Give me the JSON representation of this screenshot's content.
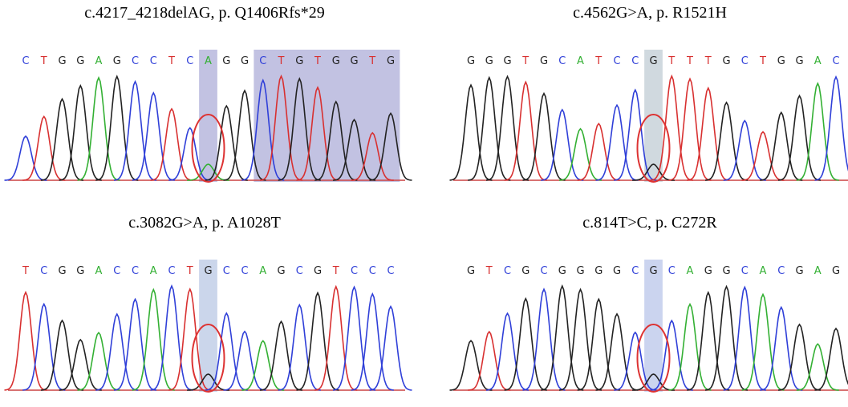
{
  "panels": [
    {
      "title": "c.4217_4218delAG, p. Q1406Rfs*29",
      "bases": [
        "C",
        "T",
        "G",
        "G",
        "A",
        "G",
        "C",
        "C",
        "T",
        "C",
        "A",
        "G",
        "G",
        "C",
        "T",
        "G",
        "T",
        "G",
        "G",
        "T",
        "G"
      ]
    },
    {
      "title": "c.4562G>A, p. R1521H",
      "bases": [
        "G",
        "G",
        "G",
        "T",
        "G",
        "C",
        "A",
        "T",
        "C",
        "C",
        "G",
        "T",
        "T",
        "T",
        "G",
        "C",
        "T",
        "G",
        "G",
        "A",
        "C"
      ]
    },
    {
      "title": "c.3082G>A, p. A1028T",
      "bases": [
        "T",
        "C",
        "G",
        "G",
        "A",
        "C",
        "C",
        "A",
        "C",
        "T",
        "G",
        "C",
        "C",
        "A",
        "G",
        "C",
        "G",
        "T",
        "C",
        "C",
        "C"
      ]
    },
    {
      "title": "c.814T>C, p. C272R",
      "bases": [
        "G",
        "T",
        "C",
        "G",
        "C",
        "G",
        "G",
        "G",
        "G",
        "C",
        "G",
        "C",
        "A",
        "G",
        "G",
        "C",
        "A",
        "C",
        "G",
        "A",
        "G"
      ]
    }
  ],
  "base_colors": {
    "A": "#33b033",
    "C": "#2f3fd8",
    "G": "#222222",
    "T": "#d83030"
  }
}
